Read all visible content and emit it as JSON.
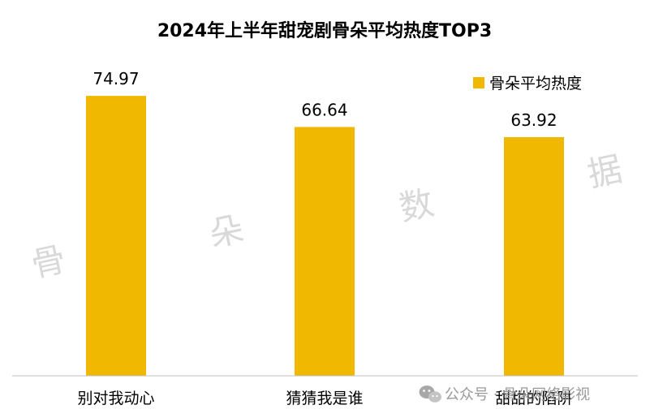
{
  "chart_data": {
    "type": "bar",
    "title": "2024年上半年甜宠剧骨朵平均热度TOP3",
    "categories": [
      "别对我动心",
      "猜猜我是谁",
      "甜甜的陷阱"
    ],
    "series": [
      {
        "name": "骨朵平均热度",
        "values": [
          74.97,
          66.64,
          63.92
        ],
        "color": "#F0B800"
      }
    ],
    "data_labels": [
      "74.97",
      "66.64",
      "63.92"
    ],
    "ylim": [
      0,
      80
    ],
    "grid": false,
    "legend_position": "top-right"
  },
  "watermark": {
    "chars": [
      "骨",
      "朵",
      "数",
      "据"
    ],
    "footer": "公众号 · 骨朵网络影视"
  },
  "colors": {
    "bar": "#F0B800",
    "axis": "#bfbfbf",
    "watermark": "#d9d9d9"
  }
}
